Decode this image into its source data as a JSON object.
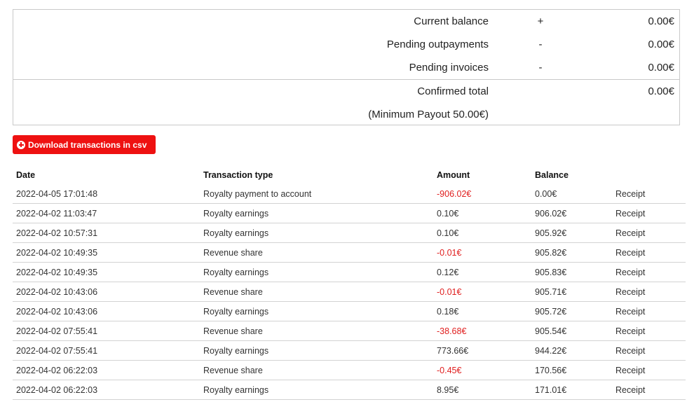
{
  "summary": {
    "current_balance": {
      "label": "Current balance",
      "sign": "+",
      "value": "0.00€"
    },
    "pending_outpayments": {
      "label": "Pending outpayments",
      "sign": "-",
      "value": "0.00€"
    },
    "pending_invoices": {
      "label": "Pending invoices",
      "sign": "-",
      "value": "0.00€"
    },
    "confirmed_total": {
      "label": "Confirmed total",
      "value": "0.00€"
    },
    "minimum_payout": "(Minimum Payout 50.00€)"
  },
  "download_button": {
    "label": "Download transactions in csv",
    "icon": "plus-circle-icon"
  },
  "table": {
    "headers": {
      "date": "Date",
      "type": "Transaction type",
      "amount": "Amount",
      "balance": "Balance"
    },
    "rows": [
      {
        "date": "2022-04-05 17:01:48",
        "type": "Royalty payment to account",
        "amount": "-906.02€",
        "balance": "0.00€",
        "receipt": "Receipt",
        "negative": true
      },
      {
        "date": "2022-04-02 11:03:47",
        "type": "Royalty earnings",
        "amount": "0.10€",
        "balance": "906.02€",
        "receipt": "Receipt",
        "negative": false
      },
      {
        "date": "2022-04-02 10:57:31",
        "type": "Royalty earnings",
        "amount": "0.10€",
        "balance": "905.92€",
        "receipt": "Receipt",
        "negative": false
      },
      {
        "date": "2022-04-02 10:49:35",
        "type": "Revenue share",
        "amount": "-0.01€",
        "balance": "905.82€",
        "receipt": "Receipt",
        "negative": true
      },
      {
        "date": "2022-04-02 10:49:35",
        "type": "Royalty earnings",
        "amount": "0.12€",
        "balance": "905.83€",
        "receipt": "Receipt",
        "negative": false
      },
      {
        "date": "2022-04-02 10:43:06",
        "type": "Revenue share",
        "amount": "-0.01€",
        "balance": "905.71€",
        "receipt": "Receipt",
        "negative": true
      },
      {
        "date": "2022-04-02 10:43:06",
        "type": "Royalty earnings",
        "amount": "0.18€",
        "balance": "905.72€",
        "receipt": "Receipt",
        "negative": false
      },
      {
        "date": "2022-04-02 07:55:41",
        "type": "Revenue share",
        "amount": "-38.68€",
        "balance": "905.54€",
        "receipt": "Receipt",
        "negative": true
      },
      {
        "date": "2022-04-02 07:55:41",
        "type": "Royalty earnings",
        "amount": "773.66€",
        "balance": "944.22€",
        "receipt": "Receipt",
        "negative": false
      },
      {
        "date": "2022-04-02 06:22:03",
        "type": "Revenue share",
        "amount": "-0.45€",
        "balance": "170.56€",
        "receipt": "Receipt",
        "negative": true
      },
      {
        "date": "2022-04-02 06:22:03",
        "type": "Royalty earnings",
        "amount": "8.95€",
        "balance": "171.01€",
        "receipt": "Receipt",
        "negative": false
      }
    ]
  },
  "colors": {
    "accent": "#ee1111",
    "negative": "#e02020",
    "border": "#c9c9c9"
  }
}
